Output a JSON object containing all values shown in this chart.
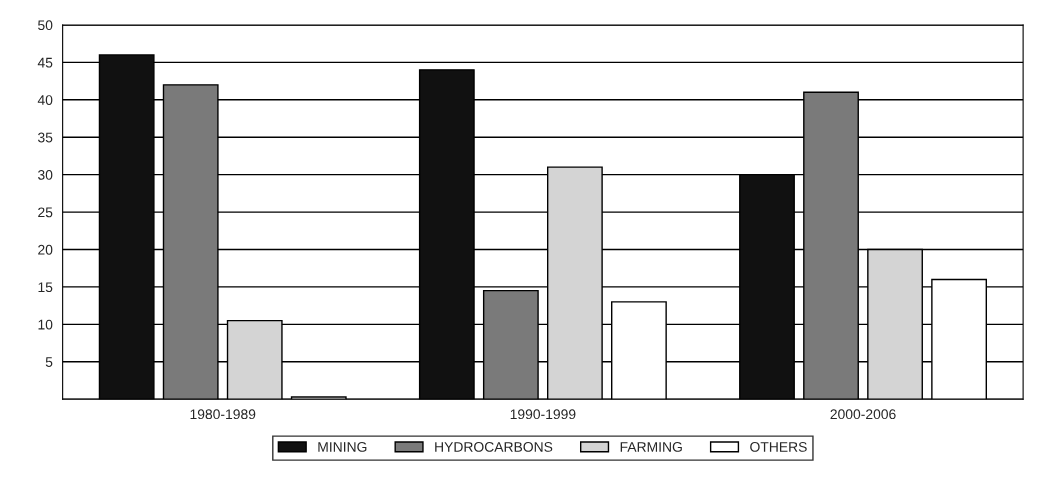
{
  "chart_data": {
    "type": "bar",
    "categories": [
      "1980-1989",
      "1990-1999",
      "2000-2006"
    ],
    "series": [
      {
        "name": "MINING",
        "color": "#111111",
        "values": [
          46,
          44,
          30
        ]
      },
      {
        "name": "HYDROCARBONS",
        "color": "#7a7a7a",
        "values": [
          42,
          14.5,
          41
        ]
      },
      {
        "name": "FARMING",
        "color": "#d4d4d4",
        "values": [
          10.5,
          31,
          20
        ]
      },
      {
        "name": "OTHERS",
        "color": "#ffffff",
        "values": [
          0.3,
          13,
          16
        ]
      }
    ],
    "ylim": [
      0,
      50
    ],
    "yticks": [
      {
        "value": 0,
        "label": null
      },
      5,
      10,
      15,
      20,
      25,
      30,
      35,
      40,
      45,
      50
    ],
    "grid": "y",
    "legend": "bottom"
  }
}
